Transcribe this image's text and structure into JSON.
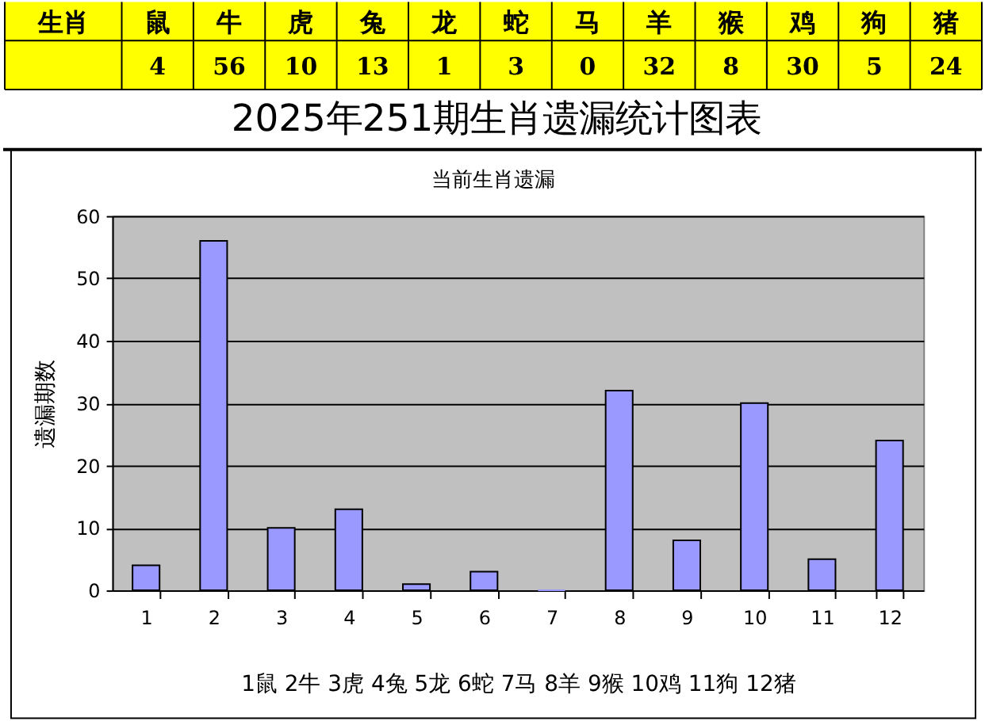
{
  "chart_data": [
    {
      "type": "other",
      "categories": [
        "鼠",
        "牛",
        "虎",
        "兔",
        "龙",
        "蛇",
        "马",
        "羊",
        "猴",
        "鸡",
        "狗",
        "猪"
      ],
      "values": [
        4,
        56,
        10,
        13,
        1,
        3,
        0,
        32,
        8,
        30,
        5,
        24
      ],
      "data_labels": true,
      "annotations": [
        "生肖"
      ]
    },
    {
      "type": "bar",
      "title": "2025年251期生肖遗漏统计图表",
      "subtitle": "当前生肖遗漏",
      "xlabel": "1鼠 2牛 3虎 4兔 5龙 6蛇 7马 8羊 9猴 10鸡 11狗 12猪",
      "ylabel": "遗漏期数",
      "categories": [
        "1",
        "2",
        "3",
        "4",
        "5",
        "6",
        "7",
        "8",
        "9",
        "10",
        "11",
        "12"
      ],
      "values": [
        4,
        56,
        10,
        13,
        1,
        3,
        0,
        32,
        8,
        30,
        5,
        24
      ],
      "color": "#9999ff",
      "ylim": [
        0,
        60
      ],
      "yticks": [
        0,
        10,
        20,
        30,
        40,
        50,
        60
      ],
      "grid": "y"
    }
  ]
}
